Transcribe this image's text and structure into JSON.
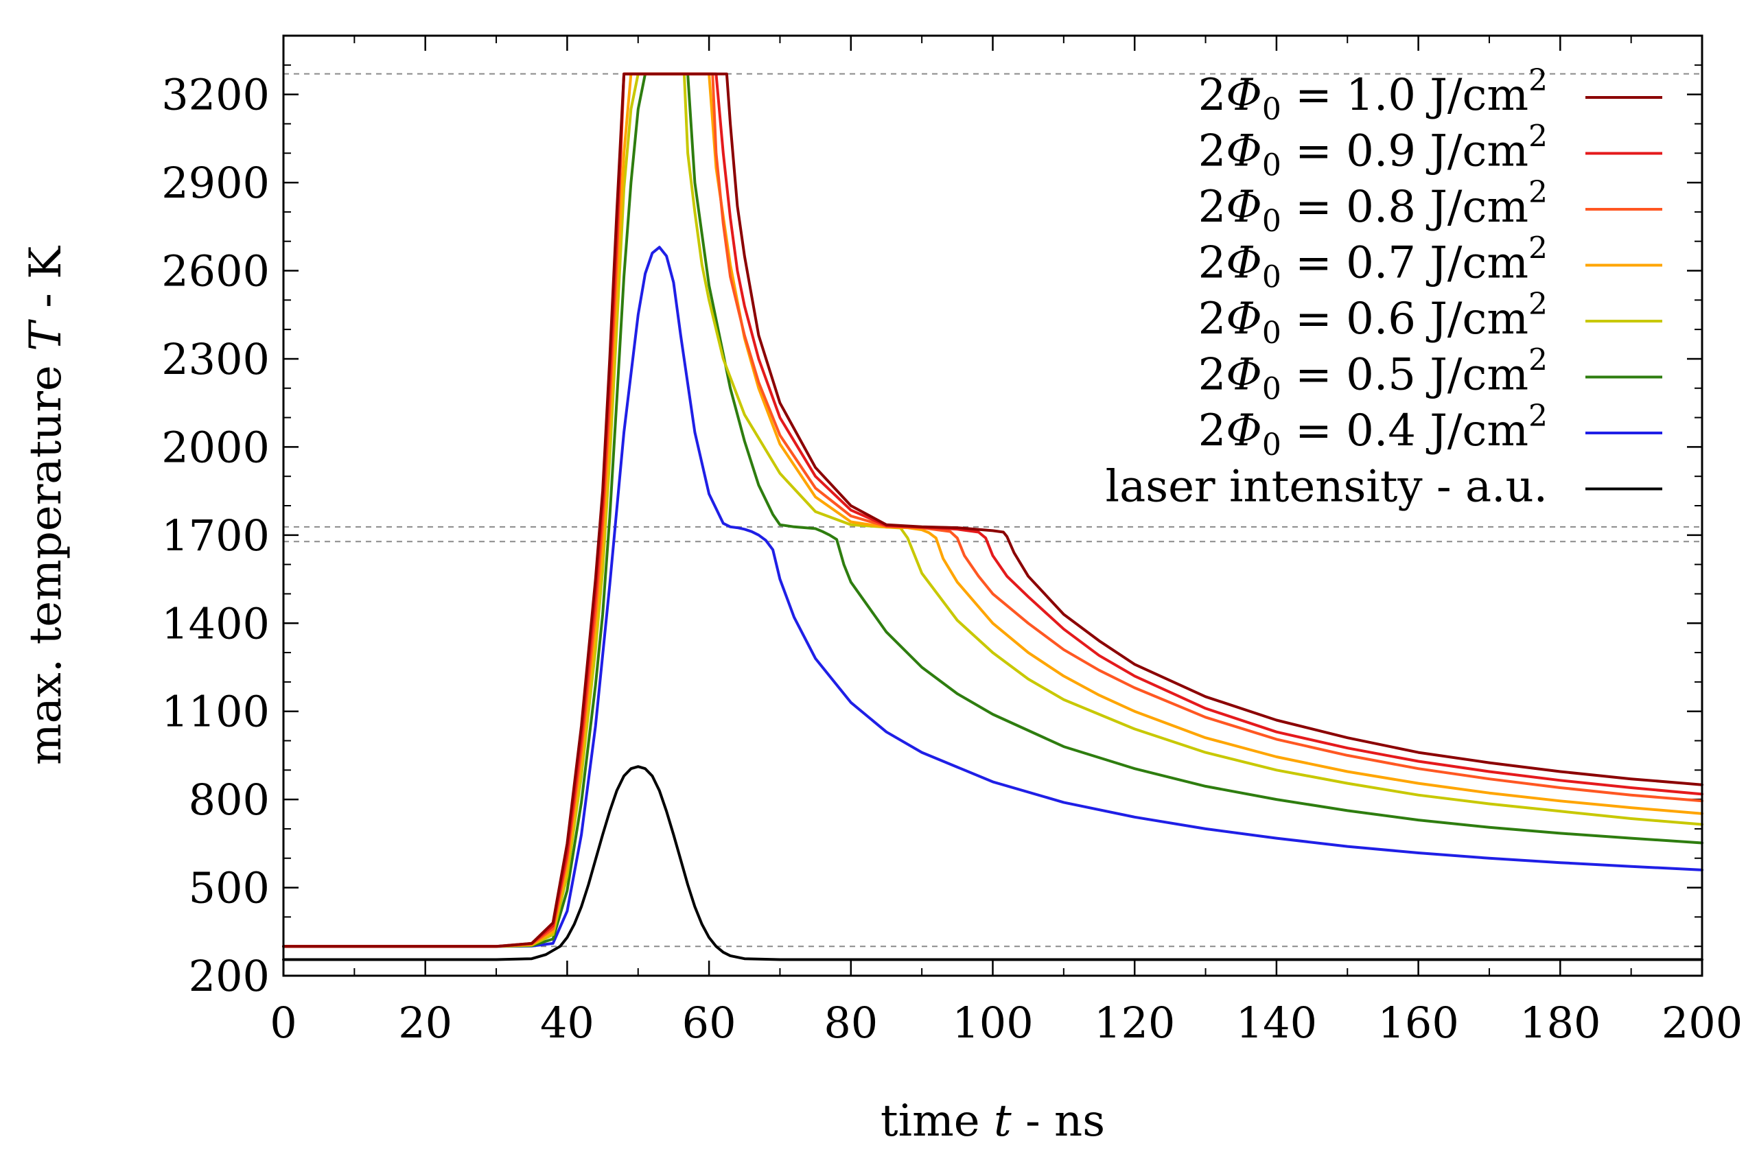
{
  "chart_data": {
    "type": "line",
    "title": "",
    "xlabel": {
      "prefix": "time ",
      "symbol": "t",
      "suffix": " - ns"
    },
    "ylabel": {
      "prefix": "max. temperature ",
      "symbol": "T",
      "suffix": " - K"
    },
    "xlim": [
      0,
      200
    ],
    "ylim": [
      200,
      3400
    ],
    "xticks": [
      0,
      20,
      40,
      60,
      80,
      100,
      120,
      140,
      160,
      180,
      200
    ],
    "yticks": [
      200,
      500,
      800,
      1100,
      1400,
      1700,
      2000,
      2300,
      2600,
      2900,
      3200
    ],
    "reference_lines": [
      {
        "name": "boiling-temperature",
        "y": 3270
      },
      {
        "name": "melting-temperature-upper",
        "y": 1728
      },
      {
        "name": "melting-temperature-lower",
        "y": 1678
      },
      {
        "name": "ambient-temperature",
        "y": 300
      }
    ],
    "legend_position": "top-right",
    "series": [
      {
        "name": "fluence-1.0",
        "label": {
          "lhs": "2",
          "phi": "Φ",
          "sub": "0",
          "value": " = 1.0 J/cm",
          "sup": "2"
        },
        "color": "#8b0000",
        "x": [
          0,
          30,
          35,
          38,
          40,
          42,
          44,
          45,
          46,
          47,
          48,
          49,
          50,
          55,
          60,
          61,
          62,
          62.5,
          63,
          64,
          65,
          67,
          70,
          75,
          80,
          85,
          90,
          95,
          100,
          101.5,
          102,
          103,
          105,
          110,
          115,
          120,
          130,
          140,
          150,
          160,
          170,
          180,
          190,
          200
        ],
        "y": [
          300,
          300,
          310,
          380,
          650,
          1050,
          1550,
          1850,
          2300,
          2800,
          3270,
          3270,
          3270,
          3270,
          3270,
          3270,
          3270,
          3270,
          3100,
          2820,
          2650,
          2380,
          2150,
          1930,
          1800,
          1735,
          1728,
          1725,
          1715,
          1710,
          1695,
          1640,
          1560,
          1430,
          1340,
          1260,
          1150,
          1070,
          1010,
          960,
          925,
          895,
          870,
          850
        ]
      },
      {
        "name": "fluence-0.9",
        "label": {
          "lhs": "2",
          "phi": "Φ",
          "sub": "0",
          "value": " = 0.9 J/cm",
          "sup": "2"
        },
        "color": "#e41a1c",
        "x": [
          0,
          30,
          35,
          38,
          40,
          42,
          44,
          45,
          46,
          47,
          48,
          50,
          55,
          60,
          61,
          62,
          63,
          64,
          65,
          67,
          70,
          75,
          80,
          85,
          90,
          95,
          98,
          99,
          100,
          102,
          105,
          110,
          115,
          120,
          130,
          140,
          150,
          160,
          170,
          180,
          190,
          200
        ],
        "y": [
          300,
          300,
          310,
          370,
          620,
          1010,
          1500,
          1800,
          2230,
          2720,
          3270,
          3270,
          3270,
          3270,
          3270,
          3000,
          2780,
          2600,
          2480,
          2300,
          2100,
          1900,
          1785,
          1732,
          1727,
          1720,
          1710,
          1690,
          1630,
          1560,
          1490,
          1380,
          1290,
          1220,
          1110,
          1030,
          975,
          930,
          895,
          865,
          840,
          818
        ]
      },
      {
        "name": "fluence-0.8",
        "label": {
          "lhs": "2",
          "phi": "Φ",
          "sub": "0",
          "value": " = 0.8 J/cm",
          "sup": "2"
        },
        "color": "#ff5722",
        "x": [
          0,
          30,
          35,
          38,
          40,
          42,
          44,
          45,
          46,
          47,
          47.5,
          48,
          50,
          55,
          60,
          60.5,
          61,
          62,
          63,
          65,
          67,
          70,
          75,
          80,
          85,
          90,
          94,
          95,
          96,
          98,
          100,
          105,
          110,
          115,
          120,
          130,
          140,
          150,
          160,
          170,
          180,
          190,
          200
        ],
        "y": [
          300,
          300,
          308,
          360,
          600,
          970,
          1440,
          1740,
          2150,
          2640,
          2950,
          3270,
          3270,
          3270,
          3270,
          3270,
          3000,
          2760,
          2580,
          2380,
          2220,
          2040,
          1860,
          1765,
          1730,
          1725,
          1712,
          1690,
          1630,
          1560,
          1500,
          1400,
          1310,
          1240,
          1180,
          1080,
          1005,
          950,
          905,
          870,
          840,
          815,
          795
        ]
      },
      {
        "name": "fluence-0.7",
        "label": {
          "lhs": "2",
          "phi": "Φ",
          "sub": "0",
          "value": " = 0.7 J/cm",
          "sup": "2"
        },
        "color": "#ffa500",
        "x": [
          0,
          30,
          35,
          38,
          40,
          42,
          44,
          45,
          46,
          47,
          48,
          49,
          50,
          55,
          59,
          60,
          61,
          63,
          65,
          67,
          70,
          75,
          80,
          85,
          88,
          90,
          91,
          92,
          93,
          95,
          100,
          105,
          110,
          115,
          120,
          130,
          140,
          150,
          160,
          170,
          180,
          190,
          200
        ],
        "y": [
          300,
          300,
          306,
          350,
          570,
          930,
          1380,
          1660,
          2060,
          2530,
          3000,
          3270,
          3270,
          3270,
          3270,
          3270,
          2950,
          2620,
          2370,
          2200,
          2010,
          1830,
          1745,
          1727,
          1725,
          1718,
          1708,
          1690,
          1620,
          1540,
          1400,
          1300,
          1220,
          1155,
          1100,
          1010,
          945,
          895,
          855,
          822,
          795,
          772,
          752
        ]
      },
      {
        "name": "fluence-0.6",
        "label": {
          "lhs": "2",
          "phi": "Φ",
          "sub": "0",
          "value": " = 0.6 J/cm",
          "sup": "2"
        },
        "color": "#c8c800",
        "x": [
          0,
          30,
          35,
          38,
          40,
          42,
          44,
          45,
          46,
          47,
          48,
          49,
          50,
          50.5,
          55,
          56.5,
          57,
          58,
          59,
          60,
          62,
          65,
          70,
          75,
          80,
          85,
          87,
          88,
          90,
          95,
          100,
          105,
          110,
          120,
          130,
          140,
          150,
          160,
          170,
          180,
          190,
          200
        ],
        "y": [
          300,
          300,
          304,
          340,
          540,
          880,
          1310,
          1580,
          1960,
          2410,
          2880,
          3150,
          3270,
          3270,
          3270,
          3270,
          3000,
          2800,
          2620,
          2500,
          2300,
          2110,
          1910,
          1780,
          1735,
          1727,
          1724,
          1690,
          1570,
          1410,
          1300,
          1210,
          1140,
          1040,
          960,
          900,
          855,
          815,
          785,
          760,
          735,
          715
        ]
      },
      {
        "name": "fluence-0.5",
        "label": {
          "lhs": "2",
          "phi": "Φ",
          "sub": "0",
          "value": " = 0.5 J/cm",
          "sup": "2"
        },
        "color": "#2e7d0f",
        "x": [
          0,
          30,
          35,
          38,
          40,
          42,
          44,
          45,
          46,
          47,
          48,
          49,
          50,
          51,
          52,
          53,
          55,
          56,
          57,
          58,
          60,
          63,
          65,
          67,
          69,
          70,
          72,
          75,
          76,
          77,
          78,
          79,
          80,
          85,
          90,
          95,
          100,
          110,
          120,
          130,
          140,
          150,
          160,
          170,
          180,
          190,
          200
        ],
        "y": [
          300,
          300,
          302,
          325,
          490,
          790,
          1190,
          1430,
          1760,
          2160,
          2580,
          2900,
          3150,
          3270,
          3270,
          3270,
          3270,
          3270,
          3270,
          2900,
          2550,
          2200,
          2020,
          1870,
          1770,
          1735,
          1728,
          1722,
          1712,
          1700,
          1685,
          1600,
          1540,
          1370,
          1250,
          1160,
          1090,
          980,
          905,
          845,
          800,
          762,
          730,
          705,
          685,
          668,
          652
        ]
      },
      {
        "name": "fluence-0.4",
        "label": {
          "lhs": "2",
          "phi": "Φ",
          "sub": "0",
          "value": " = 0.4 J/cm",
          "sup": "2"
        },
        "color": "#1f1fe6",
        "x": [
          0,
          30,
          35,
          38,
          40,
          42,
          44,
          46,
          48,
          50,
          51,
          52,
          53,
          54,
          55,
          56,
          58,
          60,
          62,
          63,
          64,
          65,
          66,
          67,
          68,
          69,
          70,
          72,
          75,
          80,
          85,
          90,
          100,
          110,
          120,
          130,
          140,
          150,
          160,
          170,
          180,
          190,
          200
        ],
        "y": [
          300,
          300,
          301,
          310,
          420,
          680,
          1050,
          1530,
          2050,
          2450,
          2590,
          2660,
          2680,
          2650,
          2560,
          2380,
          2050,
          1840,
          1740,
          1728,
          1725,
          1720,
          1712,
          1700,
          1682,
          1650,
          1550,
          1420,
          1280,
          1130,
          1030,
          960,
          860,
          790,
          740,
          700,
          668,
          640,
          618,
          600,
          585,
          572,
          560
        ]
      },
      {
        "name": "laser-intensity",
        "label": {
          "lhs": "",
          "phi": "",
          "sub": "",
          "value": "laser intensity - a.u.",
          "sup": ""
        },
        "color": "#000000",
        "x": [
          0,
          30,
          35,
          37,
          39,
          40,
          41,
          42,
          43,
          44,
          45,
          46,
          47,
          48,
          49,
          50,
          51,
          52,
          53,
          54,
          55,
          56,
          57,
          58,
          59,
          60,
          61,
          62,
          63,
          65,
          70,
          200
        ],
        "y": [
          255,
          255,
          258,
          272,
          300,
          330,
          375,
          435,
          510,
          595,
          680,
          760,
          830,
          880,
          905,
          912,
          905,
          880,
          830,
          760,
          680,
          595,
          510,
          435,
          375,
          330,
          300,
          280,
          268,
          258,
          255,
          255
        ]
      }
    ]
  }
}
